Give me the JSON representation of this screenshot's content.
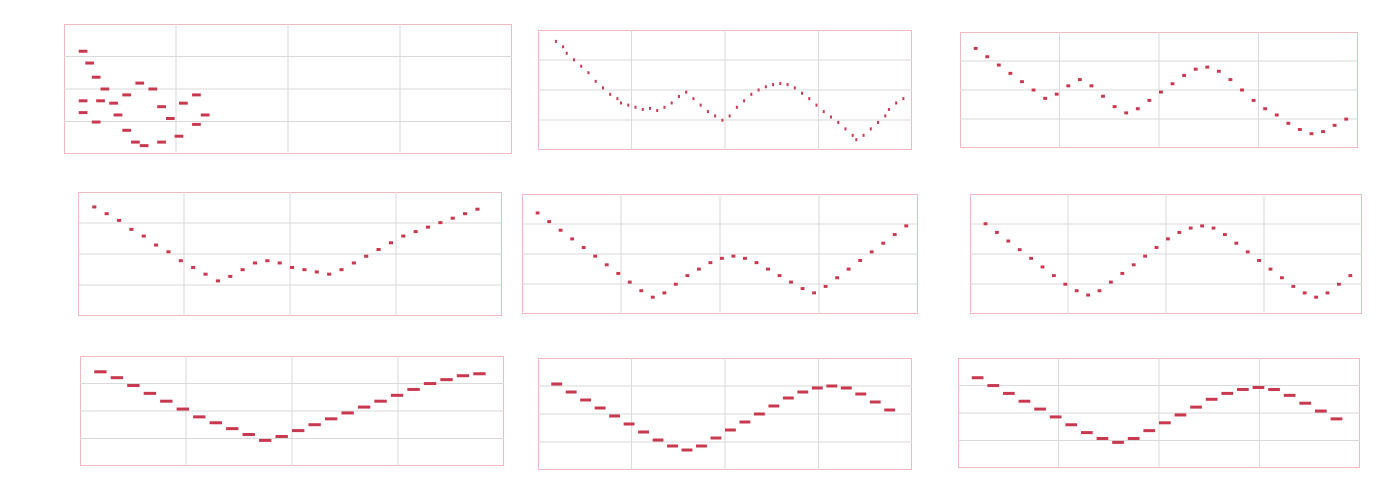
{
  "accent_color": "#c8384f",
  "grid_color": "#dadada",
  "chart_data": [
    {
      "type": "scatter",
      "notes": [
        [
          0.02,
          0.18,
          0.02
        ],
        [
          0.035,
          0.28,
          0.02
        ],
        [
          0.05,
          0.4,
          0.02
        ],
        [
          0.07,
          0.5,
          0.02
        ],
        [
          0.09,
          0.62,
          0.02
        ],
        [
          0.1,
          0.72,
          0.02
        ],
        [
          0.12,
          0.85,
          0.02
        ],
        [
          0.14,
          0.95,
          0.02
        ],
        [
          0.16,
          0.98,
          0.02
        ],
        [
          0.2,
          0.95,
          0.02
        ],
        [
          0.24,
          0.9,
          0.02
        ],
        [
          0.28,
          0.8,
          0.02
        ],
        [
          0.3,
          0.72,
          0.02
        ],
        [
          0.02,
          0.6,
          0.02
        ],
        [
          0.02,
          0.7,
          0.02
        ],
        [
          0.05,
          0.78,
          0.02
        ],
        [
          0.06,
          0.6,
          0.02
        ],
        [
          0.12,
          0.55,
          0.02
        ],
        [
          0.15,
          0.45,
          0.02
        ],
        [
          0.18,
          0.5,
          0.02
        ],
        [
          0.2,
          0.65,
          0.02
        ],
        [
          0.22,
          0.75,
          0.02
        ],
        [
          0.25,
          0.62,
          0.02
        ],
        [
          0.28,
          0.55,
          0.02
        ]
      ]
    },
    {
      "type": "scatter",
      "notes": [
        [
          0.03,
          0.05,
          0.005
        ],
        [
          0.05,
          0.1,
          0.005
        ],
        [
          0.06,
          0.16,
          0.005
        ],
        [
          0.08,
          0.22,
          0.005
        ],
        [
          0.1,
          0.28,
          0.005
        ],
        [
          0.12,
          0.34,
          0.005
        ],
        [
          0.14,
          0.42,
          0.005
        ],
        [
          0.16,
          0.48,
          0.005
        ],
        [
          0.18,
          0.54,
          0.005
        ],
        [
          0.2,
          0.58,
          0.005
        ],
        [
          0.21,
          0.62,
          0.005
        ],
        [
          0.23,
          0.64,
          0.005
        ],
        [
          0.25,
          0.66,
          0.005
        ],
        [
          0.27,
          0.68,
          0.005
        ],
        [
          0.29,
          0.67,
          0.005
        ],
        [
          0.31,
          0.69,
          0.005
        ],
        [
          0.33,
          0.66,
          0.005
        ],
        [
          0.35,
          0.62,
          0.005
        ],
        [
          0.37,
          0.56,
          0.005
        ],
        [
          0.39,
          0.52,
          0.005
        ],
        [
          0.41,
          0.58,
          0.005
        ],
        [
          0.43,
          0.64,
          0.005
        ],
        [
          0.45,
          0.7,
          0.005
        ],
        [
          0.47,
          0.74,
          0.005
        ],
        [
          0.49,
          0.78,
          0.005
        ],
        [
          0.51,
          0.74,
          0.005
        ],
        [
          0.53,
          0.66,
          0.005
        ],
        [
          0.55,
          0.6,
          0.005
        ],
        [
          0.57,
          0.54,
          0.005
        ],
        [
          0.59,
          0.5,
          0.005
        ],
        [
          0.61,
          0.47,
          0.005
        ],
        [
          0.63,
          0.45,
          0.005
        ],
        [
          0.65,
          0.44,
          0.005
        ],
        [
          0.67,
          0.45,
          0.005
        ],
        [
          0.69,
          0.48,
          0.005
        ],
        [
          0.71,
          0.53,
          0.005
        ],
        [
          0.73,
          0.58,
          0.005
        ],
        [
          0.75,
          0.64,
          0.005
        ],
        [
          0.77,
          0.7,
          0.005
        ],
        [
          0.79,
          0.75,
          0.005
        ],
        [
          0.81,
          0.8,
          0.005
        ],
        [
          0.83,
          0.86,
          0.005
        ],
        [
          0.85,
          0.92,
          0.005
        ],
        [
          0.86,
          0.96,
          0.005
        ],
        [
          0.88,
          0.92,
          0.005
        ],
        [
          0.9,
          0.86,
          0.005
        ],
        [
          0.92,
          0.8,
          0.005
        ],
        [
          0.94,
          0.74,
          0.005
        ],
        [
          0.95,
          0.68,
          0.005
        ],
        [
          0.97,
          0.62,
          0.005
        ],
        [
          0.99,
          0.58,
          0.005
        ]
      ]
    },
    {
      "type": "scatter",
      "notes": [
        [
          0.02,
          0.1,
          0.01
        ],
        [
          0.05,
          0.18,
          0.01
        ],
        [
          0.08,
          0.26,
          0.01
        ],
        [
          0.11,
          0.34,
          0.01
        ],
        [
          0.14,
          0.42,
          0.01
        ],
        [
          0.17,
          0.5,
          0.01
        ],
        [
          0.2,
          0.58,
          0.01
        ],
        [
          0.23,
          0.54,
          0.01
        ],
        [
          0.26,
          0.46,
          0.01
        ],
        [
          0.29,
          0.4,
          0.01
        ],
        [
          0.32,
          0.46,
          0.01
        ],
        [
          0.35,
          0.56,
          0.01
        ],
        [
          0.38,
          0.66,
          0.01
        ],
        [
          0.41,
          0.72,
          0.01
        ],
        [
          0.44,
          0.68,
          0.01
        ],
        [
          0.47,
          0.6,
          0.01
        ],
        [
          0.5,
          0.52,
          0.01
        ],
        [
          0.53,
          0.44,
          0.01
        ],
        [
          0.56,
          0.36,
          0.01
        ],
        [
          0.59,
          0.3,
          0.01
        ],
        [
          0.62,
          0.28,
          0.01
        ],
        [
          0.65,
          0.32,
          0.01
        ],
        [
          0.68,
          0.4,
          0.01
        ],
        [
          0.71,
          0.5,
          0.01
        ],
        [
          0.74,
          0.6,
          0.01
        ],
        [
          0.77,
          0.68,
          0.01
        ],
        [
          0.8,
          0.74,
          0.01
        ],
        [
          0.83,
          0.82,
          0.01
        ],
        [
          0.86,
          0.88,
          0.01
        ],
        [
          0.89,
          0.92,
          0.01
        ],
        [
          0.92,
          0.9,
          0.01
        ],
        [
          0.95,
          0.84,
          0.01
        ],
        [
          0.98,
          0.78,
          0.01
        ]
      ]
    },
    {
      "type": "scatter",
      "notes": [
        [
          0.02,
          0.08,
          0.01
        ],
        [
          0.05,
          0.14,
          0.01
        ],
        [
          0.08,
          0.2,
          0.01
        ],
        [
          0.11,
          0.28,
          0.01
        ],
        [
          0.14,
          0.34,
          0.01
        ],
        [
          0.17,
          0.42,
          0.01
        ],
        [
          0.2,
          0.48,
          0.01
        ],
        [
          0.23,
          0.56,
          0.01
        ],
        [
          0.26,
          0.62,
          0.01
        ],
        [
          0.29,
          0.68,
          0.01
        ],
        [
          0.32,
          0.74,
          0.01
        ],
        [
          0.35,
          0.7,
          0.01
        ],
        [
          0.38,
          0.64,
          0.01
        ],
        [
          0.41,
          0.58,
          0.01
        ],
        [
          0.44,
          0.56,
          0.01
        ],
        [
          0.47,
          0.58,
          0.01
        ],
        [
          0.5,
          0.62,
          0.01
        ],
        [
          0.53,
          0.64,
          0.01
        ],
        [
          0.56,
          0.66,
          0.01
        ],
        [
          0.59,
          0.68,
          0.01
        ],
        [
          0.62,
          0.64,
          0.01
        ],
        [
          0.65,
          0.58,
          0.01
        ],
        [
          0.68,
          0.52,
          0.01
        ],
        [
          0.71,
          0.46,
          0.01
        ],
        [
          0.74,
          0.4,
          0.01
        ],
        [
          0.77,
          0.34,
          0.01
        ],
        [
          0.8,
          0.3,
          0.01
        ],
        [
          0.83,
          0.26,
          0.01
        ],
        [
          0.86,
          0.22,
          0.01
        ],
        [
          0.89,
          0.18,
          0.01
        ],
        [
          0.92,
          0.14,
          0.01
        ],
        [
          0.95,
          0.1,
          0.01
        ]
      ]
    },
    {
      "type": "scatter",
      "notes": [
        [
          0.02,
          0.12,
          0.01
        ],
        [
          0.05,
          0.2,
          0.01
        ],
        [
          0.08,
          0.28,
          0.01
        ],
        [
          0.11,
          0.36,
          0.01
        ],
        [
          0.14,
          0.44,
          0.01
        ],
        [
          0.17,
          0.52,
          0.01
        ],
        [
          0.2,
          0.6,
          0.01
        ],
        [
          0.23,
          0.68,
          0.01
        ],
        [
          0.26,
          0.76,
          0.01
        ],
        [
          0.29,
          0.84,
          0.01
        ],
        [
          0.32,
          0.9,
          0.01
        ],
        [
          0.35,
          0.86,
          0.01
        ],
        [
          0.38,
          0.78,
          0.01
        ],
        [
          0.41,
          0.7,
          0.01
        ],
        [
          0.44,
          0.64,
          0.01
        ],
        [
          0.47,
          0.58,
          0.01
        ],
        [
          0.5,
          0.54,
          0.01
        ],
        [
          0.53,
          0.52,
          0.01
        ],
        [
          0.56,
          0.54,
          0.01
        ],
        [
          0.59,
          0.58,
          0.01
        ],
        [
          0.62,
          0.64,
          0.01
        ],
        [
          0.65,
          0.7,
          0.01
        ],
        [
          0.68,
          0.76,
          0.01
        ],
        [
          0.71,
          0.82,
          0.01
        ],
        [
          0.74,
          0.86,
          0.01
        ],
        [
          0.77,
          0.8,
          0.01
        ],
        [
          0.8,
          0.72,
          0.01
        ],
        [
          0.83,
          0.64,
          0.01
        ],
        [
          0.86,
          0.56,
          0.01
        ],
        [
          0.89,
          0.48,
          0.01
        ],
        [
          0.92,
          0.4,
          0.01
        ],
        [
          0.95,
          0.32,
          0.01
        ],
        [
          0.98,
          0.24,
          0.01
        ]
      ]
    },
    {
      "type": "scatter",
      "notes": [
        [
          0.02,
          0.22,
          0.01
        ],
        [
          0.05,
          0.3,
          0.01
        ],
        [
          0.08,
          0.38,
          0.01
        ],
        [
          0.11,
          0.46,
          0.01
        ],
        [
          0.14,
          0.54,
          0.01
        ],
        [
          0.17,
          0.62,
          0.01
        ],
        [
          0.2,
          0.7,
          0.01
        ],
        [
          0.23,
          0.78,
          0.01
        ],
        [
          0.26,
          0.84,
          0.01
        ],
        [
          0.29,
          0.88,
          0.01
        ],
        [
          0.32,
          0.84,
          0.01
        ],
        [
          0.35,
          0.76,
          0.01
        ],
        [
          0.38,
          0.68,
          0.01
        ],
        [
          0.41,
          0.6,
          0.01
        ],
        [
          0.44,
          0.52,
          0.01
        ],
        [
          0.47,
          0.44,
          0.01
        ],
        [
          0.5,
          0.36,
          0.01
        ],
        [
          0.53,
          0.3,
          0.01
        ],
        [
          0.56,
          0.26,
          0.01
        ],
        [
          0.59,
          0.24,
          0.01
        ],
        [
          0.62,
          0.26,
          0.01
        ],
        [
          0.65,
          0.32,
          0.01
        ],
        [
          0.68,
          0.4,
          0.01
        ],
        [
          0.71,
          0.48,
          0.01
        ],
        [
          0.74,
          0.56,
          0.01
        ],
        [
          0.77,
          0.64,
          0.01
        ],
        [
          0.8,
          0.72,
          0.01
        ],
        [
          0.83,
          0.8,
          0.01
        ],
        [
          0.86,
          0.86,
          0.01
        ],
        [
          0.89,
          0.9,
          0.01
        ],
        [
          0.92,
          0.86,
          0.01
        ],
        [
          0.95,
          0.78,
          0.01
        ],
        [
          0.98,
          0.7,
          0.01
        ]
      ]
    },
    {
      "type": "scatter",
      "notes": [
        [
          0.02,
          0.1,
          0.03
        ],
        [
          0.06,
          0.16,
          0.03
        ],
        [
          0.1,
          0.24,
          0.03
        ],
        [
          0.14,
          0.32,
          0.03
        ],
        [
          0.18,
          0.4,
          0.03
        ],
        [
          0.22,
          0.48,
          0.03
        ],
        [
          0.26,
          0.56,
          0.03
        ],
        [
          0.3,
          0.62,
          0.03
        ],
        [
          0.34,
          0.68,
          0.03
        ],
        [
          0.38,
          0.74,
          0.03
        ],
        [
          0.42,
          0.8,
          0.03
        ],
        [
          0.46,
          0.76,
          0.03
        ],
        [
          0.5,
          0.7,
          0.03
        ],
        [
          0.54,
          0.64,
          0.03
        ],
        [
          0.58,
          0.58,
          0.03
        ],
        [
          0.62,
          0.52,
          0.03
        ],
        [
          0.66,
          0.46,
          0.03
        ],
        [
          0.7,
          0.4,
          0.03
        ],
        [
          0.74,
          0.34,
          0.03
        ],
        [
          0.78,
          0.28,
          0.03
        ],
        [
          0.82,
          0.22,
          0.03
        ],
        [
          0.86,
          0.18,
          0.03
        ],
        [
          0.9,
          0.14,
          0.03
        ],
        [
          0.94,
          0.12,
          0.03
        ]
      ]
    },
    {
      "type": "scatter",
      "notes": [
        [
          0.02,
          0.2,
          0.03
        ],
        [
          0.06,
          0.28,
          0.03
        ],
        [
          0.1,
          0.36,
          0.03
        ],
        [
          0.14,
          0.44,
          0.03
        ],
        [
          0.18,
          0.52,
          0.03
        ],
        [
          0.22,
          0.6,
          0.03
        ],
        [
          0.26,
          0.68,
          0.03
        ],
        [
          0.3,
          0.76,
          0.03
        ],
        [
          0.34,
          0.82,
          0.03
        ],
        [
          0.38,
          0.86,
          0.03
        ],
        [
          0.42,
          0.82,
          0.03
        ],
        [
          0.46,
          0.74,
          0.03
        ],
        [
          0.5,
          0.66,
          0.03
        ],
        [
          0.54,
          0.58,
          0.03
        ],
        [
          0.58,
          0.5,
          0.03
        ],
        [
          0.62,
          0.42,
          0.03
        ],
        [
          0.66,
          0.34,
          0.03
        ],
        [
          0.7,
          0.28,
          0.03
        ],
        [
          0.74,
          0.24,
          0.03
        ],
        [
          0.78,
          0.22,
          0.03
        ],
        [
          0.82,
          0.24,
          0.03
        ],
        [
          0.86,
          0.3,
          0.03
        ],
        [
          0.9,
          0.38,
          0.03
        ],
        [
          0.94,
          0.46,
          0.03
        ]
      ]
    },
    {
      "type": "scatter",
      "notes": [
        [
          0.02,
          0.14,
          0.03
        ],
        [
          0.06,
          0.22,
          0.03
        ],
        [
          0.1,
          0.3,
          0.03
        ],
        [
          0.14,
          0.38,
          0.03
        ],
        [
          0.18,
          0.46,
          0.03
        ],
        [
          0.22,
          0.54,
          0.03
        ],
        [
          0.26,
          0.62,
          0.03
        ],
        [
          0.3,
          0.7,
          0.03
        ],
        [
          0.34,
          0.76,
          0.03
        ],
        [
          0.38,
          0.8,
          0.03
        ],
        [
          0.42,
          0.76,
          0.03
        ],
        [
          0.46,
          0.68,
          0.03
        ],
        [
          0.5,
          0.6,
          0.03
        ],
        [
          0.54,
          0.52,
          0.03
        ],
        [
          0.58,
          0.44,
          0.03
        ],
        [
          0.62,
          0.36,
          0.03
        ],
        [
          0.66,
          0.3,
          0.03
        ],
        [
          0.7,
          0.26,
          0.03
        ],
        [
          0.74,
          0.24,
          0.03
        ],
        [
          0.78,
          0.26,
          0.03
        ],
        [
          0.82,
          0.32,
          0.03
        ],
        [
          0.86,
          0.4,
          0.03
        ],
        [
          0.9,
          0.48,
          0.03
        ],
        [
          0.94,
          0.56,
          0.03
        ]
      ]
    }
  ]
}
